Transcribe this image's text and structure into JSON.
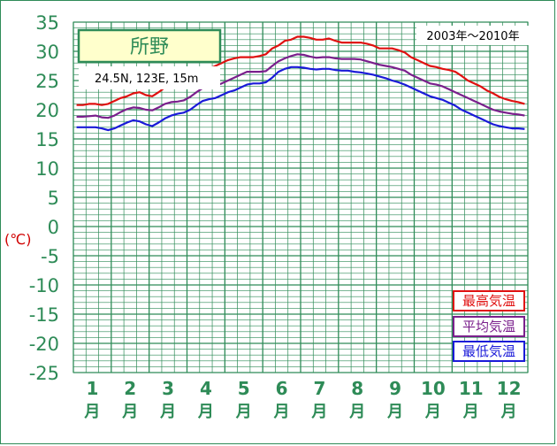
{
  "chart_data": {
    "type": "line",
    "title": "所野",
    "location": "24.5N,  123E,  15m",
    "period": "2003年〜2010年",
    "ylabel": "(℃)",
    "ylim": [
      -25,
      35
    ],
    "yticks": [
      "35",
      "30",
      "25",
      "20",
      "15",
      "10",
      "5",
      "0",
      "-5",
      "-10",
      "-15",
      "-20",
      "-25"
    ],
    "months": [
      "1",
      "2",
      "3",
      "4",
      "5",
      "6",
      "7",
      "8",
      "9",
      "10",
      "11",
      "12"
    ],
    "month_suffix": "月",
    "series": [
      {
        "name": "最高気温",
        "color": "#e01010",
        "values": [
          20.8,
          20.8,
          21.0,
          21.0,
          20.8,
          21.0,
          21.5,
          22.0,
          22.3,
          22.8,
          23.0,
          22.5,
          22.3,
          23.0,
          23.8,
          24.0,
          24.0,
          24.2,
          24.8,
          25.5,
          26.5,
          27.0,
          27.5,
          28.0,
          28.5,
          28.8,
          29.0,
          29.0,
          29.0,
          29.2,
          29.5,
          30.5,
          31.0,
          31.8,
          32.0,
          32.5,
          32.5,
          32.3,
          32.0,
          32.0,
          32.2,
          31.8,
          31.5,
          31.5,
          31.5,
          31.5,
          31.3,
          31.0,
          30.5,
          30.5,
          30.5,
          30.2,
          29.8,
          29.0,
          28.5,
          28.0,
          27.5,
          27.3,
          27.0,
          26.8,
          26.5,
          25.8,
          25.0,
          24.5,
          24.0,
          23.3,
          22.8,
          22.2,
          21.8,
          21.5,
          21.3,
          21.0
        ]
      },
      {
        "name": "平均気温",
        "color": "#7a1f8c",
        "values": [
          18.8,
          18.8,
          18.9,
          19.0,
          18.7,
          18.6,
          19.0,
          19.6,
          20.1,
          20.4,
          20.3,
          20.0,
          19.9,
          20.4,
          21.0,
          21.3,
          21.4,
          21.6,
          22.2,
          23.0,
          23.7,
          24.0,
          24.1,
          24.5,
          25.0,
          25.5,
          26.0,
          26.5,
          26.5,
          26.5,
          26.6,
          27.5,
          28.3,
          28.8,
          29.2,
          29.5,
          29.4,
          29.1,
          28.9,
          29.0,
          29.0,
          28.8,
          28.7,
          28.7,
          28.7,
          28.6,
          28.3,
          28.0,
          27.7,
          27.5,
          27.3,
          27.0,
          26.7,
          26.0,
          25.5,
          25.0,
          24.5,
          24.3,
          24.0,
          23.5,
          23.0,
          22.5,
          22.0,
          21.5,
          21.0,
          20.5,
          20.0,
          19.7,
          19.5,
          19.3,
          19.2,
          19.0
        ]
      },
      {
        "name": "最低気温",
        "color": "#1a1ad8",
        "values": [
          17.0,
          17.0,
          17.0,
          17.0,
          16.8,
          16.5,
          16.8,
          17.3,
          17.8,
          18.2,
          18.0,
          17.5,
          17.2,
          17.8,
          18.5,
          19.0,
          19.3,
          19.5,
          20.0,
          20.8,
          21.5,
          21.8,
          22.0,
          22.5,
          23.0,
          23.3,
          23.8,
          24.3,
          24.5,
          24.5,
          24.7,
          25.5,
          26.5,
          27.0,
          27.3,
          27.3,
          27.2,
          27.0,
          26.9,
          27.0,
          27.0,
          26.8,
          26.7,
          26.7,
          26.5,
          26.4,
          26.2,
          26.0,
          25.7,
          25.4,
          25.0,
          24.7,
          24.3,
          23.8,
          23.3,
          22.8,
          22.3,
          22.0,
          21.7,
          21.2,
          20.7,
          20.0,
          19.5,
          19.0,
          18.5,
          18.0,
          17.5,
          17.2,
          17.0,
          16.8,
          16.8,
          16.7
        ]
      }
    ]
  }
}
